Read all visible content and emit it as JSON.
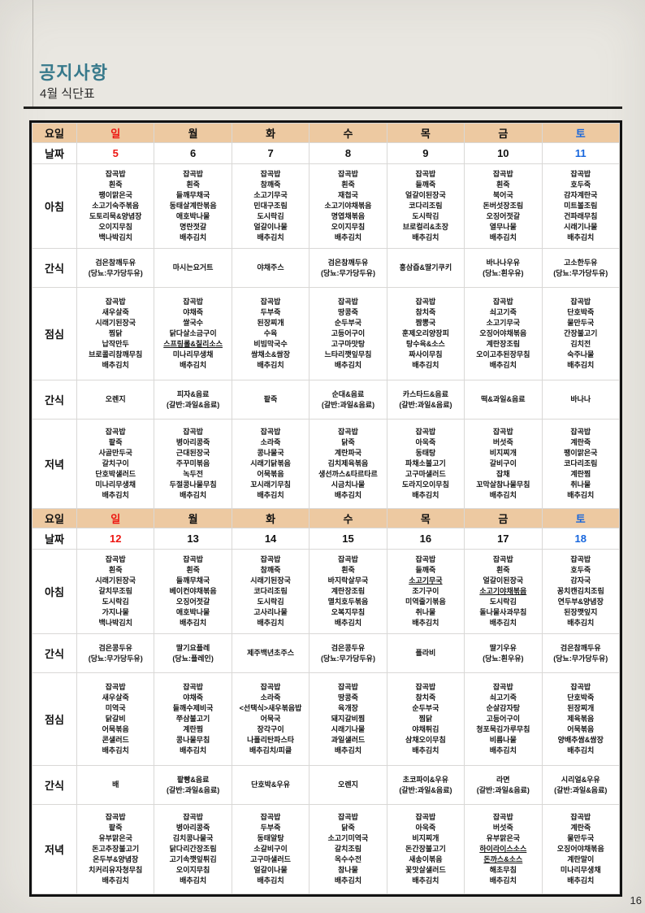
{
  "page": {
    "title": "공지사항",
    "subtitle": "4월 식단표",
    "page_number": "16"
  },
  "colors": {
    "title_accent": "#37798b",
    "header_bg": "#edc9a1",
    "sunday": "#ed1510",
    "saturday": "#1766dd",
    "weekday": "#111111"
  },
  "table": {
    "day_header_label": "요일",
    "date_label": "날짜",
    "days": [
      "일",
      "월",
      "화",
      "수",
      "목",
      "금",
      "토"
    ],
    "day_colors": [
      "#ed1510",
      "#111111",
      "#111111",
      "#111111",
      "#111111",
      "#111111",
      "#1766dd"
    ],
    "weeks": [
      {
        "dates": [
          "5",
          "6",
          "7",
          "8",
          "9",
          "10",
          "11"
        ],
        "rows": [
          {
            "label": "아침",
            "type": "breakfast",
            "cells": [
              [
                "잡곡밥",
                "흰죽",
                "팽이맑은국",
                "소고기숙주볶음",
                "도토리묵&양념장",
                "오이지무침",
                "백나박김치"
              ],
              [
                "잡곡밥",
                "흰죽",
                "들깨무채국",
                "동태살계란볶음",
                "애호박나물",
                "명란젓갈",
                "배추김치"
              ],
              [
                "잡곡밥",
                "참깨죽",
                "소고기무국",
                "민대구조림",
                "도시락김",
                "얼갈이나물",
                "배추김치"
              ],
              [
                "잡곡밥",
                "흰죽",
                "재첩국",
                "소고기야채볶음",
                "명엽채볶음",
                "오이지무침",
                "배추김치"
              ],
              [
                "잡곡밥",
                "들깨죽",
                "얼갈이된장국",
                "코다리조림",
                "도시락김",
                "브로컬리&초장",
                "배추김치"
              ],
              [
                "잡곡밥",
                "흰죽",
                "북어국",
                "돈버섯장조림",
                "오징어젓갈",
                "열무나물",
                "배추김치"
              ],
              [
                "잡곡밥",
                "호두죽",
                "감자계란국",
                "미트볼조림",
                "건파래무침",
                "시래기나물",
                "배추김치"
              ]
            ]
          },
          {
            "label": "간식",
            "type": "snack",
            "cells": [
              [
                "검은참깨두유",
                "(당뇨:무가당두유)"
              ],
              [
                "마시는요거트"
              ],
              [
                "야채주스"
              ],
              [
                "검은참깨두유",
                "(당뇨:무가당두유)"
              ],
              [
                "홍삼즙&딸기쿠키"
              ],
              [
                "바나나우유",
                "(당뇨:흰우유)"
              ],
              [
                "고소한두유",
                "(당뇨:무가당두유)"
              ]
            ]
          },
          {
            "label": "점심",
            "type": "lunch",
            "cells": [
              [
                "잡곡밥",
                "새우살죽",
                "시래기된장국",
                "찜닭",
                "납작만두",
                "브로콜리참깨무침",
                "배추김치"
              ],
              [
                "잡곡밥",
                "야채죽",
                "쌀국수",
                "닭다살소금구이",
                {
                  "text": "스프링롤&칠리소스",
                  "u": true
                },
                "미나리무생채",
                "배추김치"
              ],
              [
                "잡곡밥",
                "두부죽",
                "된장찌개",
                "수육",
                "비빔막국수",
                "쌈채소&쌈장",
                "배추김치"
              ],
              [
                "잡곡밥",
                "땅콩죽",
                "순두부국",
                "고등어구이",
                "고구마맛탕",
                "느타리깻잎무침",
                "배추김치"
              ],
              [
                "잡곡밥",
                "참치죽",
                "짬뽕국",
                "훈제오리양장피",
                "탕수육&소스",
                "짜사이무침",
                "배추김치"
              ],
              [
                "잡곡밥",
                "쇠고기죽",
                "소고기무국",
                "오징어야채볶음",
                "계란장조림",
                "오이고추된장무침",
                "배추김치"
              ],
              [
                "잡곡밥",
                "단호박죽",
                "물만두국",
                "간장불고기",
                "김치전",
                "숙주나물",
                "배추김치"
              ]
            ]
          },
          {
            "label": "간식",
            "type": "snack",
            "cells": [
              [
                "오렌지"
              ],
              [
                "피자&음료",
                "(갈반:과일&음료)"
              ],
              [
                "팥죽"
              ],
              [
                "순대&음료",
                "(갈반:과일&음료)"
              ],
              [
                "카스타드&음료",
                "(갈반:과일&음료)"
              ],
              [
                "떡&과일&음료"
              ],
              [
                "바나나"
              ]
            ]
          },
          {
            "label": "저녁",
            "type": "dinner",
            "cells": [
              [
                "잡곡밥",
                "팥죽",
                "사골만두국",
                "갈치구이",
                "단호박샐러드",
                "미나리무생채",
                "배추김치"
              ],
              [
                "잡곡밥",
                "병아리콩죽",
                "근대된장국",
                "주꾸미볶음",
                "녹두전",
                "두절콩나물무침",
                "배추김치"
              ],
              [
                "잡곡밥",
                "소라죽",
                "콩나물국",
                "시래기닭볶음",
                "어묵볶음",
                "꼬시래기무침",
                "배추김치"
              ],
              [
                "잡곡밥",
                "닭죽",
                "계란파국",
                "김치제육볶음",
                "생선까스&타르타르",
                "시금치나물",
                "배추김치"
              ],
              [
                "잡곡밥",
                "아욱죽",
                "동태탕",
                "파채소불고기",
                "고구마샐러드",
                "도라지오이무침",
                "배추김치"
              ],
              [
                "잡곡밥",
                "버섯죽",
                "비지찌개",
                "갈비구이",
                "잡채",
                "꼬막살참나물무침",
                "배추김치"
              ],
              [
                "잡곡밥",
                "계란죽",
                "팽이맑은국",
                "코다리조림",
                "계란찜",
                "취나물",
                "배추김치"
              ]
            ]
          }
        ]
      },
      {
        "dates": [
          "12",
          "13",
          "14",
          "15",
          "16",
          "17",
          "18"
        ],
        "rows": [
          {
            "label": "아침",
            "type": "breakfast",
            "cells": [
              [
                "잡곡밥",
                "흰죽",
                "시래기된장국",
                "갈치무조림",
                "도시락김",
                "가지나물",
                "백나박김치"
              ],
              [
                "잡곡밥",
                "흰죽",
                "들깨무채국",
                "베이컨야채볶음",
                "오징어젓갈",
                "애호박나물",
                "배추김치"
              ],
              [
                "잡곡밥",
                "참깨죽",
                "시래기된장국",
                "코다리조림",
                "도시락김",
                "고사리나물",
                "배추김치"
              ],
              [
                "잡곡밥",
                "흰죽",
                "바지락살무국",
                "계란장조림",
                "멸치호두볶음",
                "오복지무침",
                "배추김치"
              ],
              [
                "잡곡밥",
                "들깨죽",
                {
                  "text": "소고기무국",
                  "u": true
                },
                "조기구이",
                "미역줄기볶음",
                "취나물",
                "배추김치"
              ],
              [
                "잡곡밥",
                "흰죽",
                "얼갈이된장국",
                {
                  "text": "소고기야채볶음",
                  "u": true
                },
                "도시락김",
                "돌나물사과무침",
                "배추김치"
              ],
              [
                "잡곡밥",
                "호두죽",
                "감자국",
                "꽁치캔김치조림",
                "연두부&양념장",
                "된장깻잎지",
                "배추김치"
              ]
            ]
          },
          {
            "label": "간식",
            "type": "snack",
            "cells": [
              [
                "검은콩두유",
                "(당뇨:무가당두유)"
              ],
              [
                "딸기요플레",
                "(당뇨:플레인)"
              ],
              [
                "제주백년초주스"
              ],
              [
                "검은콩두유",
                "(당뇨:무가당두유)"
              ],
              [
                "폴라비"
              ],
              [
                "딸기우유",
                "(당뇨:흰우유)"
              ],
              [
                "검은참깨두유",
                "(당뇨:무가당두유)"
              ]
            ]
          },
          {
            "label": "점심",
            "type": "lunch",
            "cells": [
              [
                "잡곡밥",
                "새우살죽",
                "미역국",
                "닭갈비",
                "어묵볶음",
                "콘샐러드",
                "배추김치"
              ],
              [
                "잡곡밥",
                "야채죽",
                "들깨수제비국",
                "쭈삼불고기",
                "계란찜",
                "콩나물무침",
                "배추김치"
              ],
              [
                "잡곡밥",
                "소라죽",
                "<선택식>새우볶음밥",
                "어묵국",
                "장각구이",
                "나폴리탄파스타",
                "배추김치/피클"
              ],
              [
                "잡곡밥",
                "땅콩죽",
                "육개장",
                "돼지갈비찜",
                "시래기나물",
                "과일샐러드",
                "배추김치"
              ],
              [
                "잡곡밥",
                "참치죽",
                "순두부국",
                "찜닭",
                "야채튀김",
                "삼채오이무침",
                "배추김치"
              ],
              [
                "잡곡밥",
                "쇠고기죽",
                "순살감자탕",
                "고등어구이",
                "청포묵김가루무침",
                "비름나물",
                "배추김치"
              ],
              [
                "잡곡밥",
                "단호박죽",
                "된장찌개",
                "제육볶음",
                "어묵볶음",
                "양배추쌈&쌈장",
                "배추김치"
              ]
            ]
          },
          {
            "label": "간식",
            "type": "snack",
            "cells": [
              [
                "배"
              ],
              [
                "팥빵&음료",
                "(갈반:과일&음료)"
              ],
              [
                "단호박&우유"
              ],
              [
                "오렌지"
              ],
              [
                "초코파이&우유",
                "(갈반:과일&음료)"
              ],
              [
                "라면",
                "(갈반:과일&음료)"
              ],
              [
                "시리얼&우유",
                "(갈반:과일&음료)"
              ]
            ]
          },
          {
            "label": "저녁",
            "type": "dinner",
            "cells": [
              [
                "잡곡밥",
                "팥죽",
                "유부맑은국",
                "돈고추장불고기",
                "온두부&양념장",
                "치커리유자청무침",
                "배추김치"
              ],
              [
                "잡곡밥",
                "병아리콩죽",
                "김치콩나물국",
                "닭다리간장조림",
                "고기속깻잎튀김",
                "오이지무침",
                "배추김치"
              ],
              [
                "잡곡밥",
                "두부죽",
                "동태알탕",
                "소갈비구이",
                "고구마샐러드",
                "얼갈이나물",
                "배추김치"
              ],
              [
                "잡곡밥",
                "닭죽",
                "소고기미역국",
                "갈치조림",
                "옥수수전",
                "참나물",
                "배추김치"
              ],
              [
                "잡곡밥",
                "아욱죽",
                "비지찌개",
                "돈간장불고기",
                "새송이볶음",
                "꽃맛살샐러드",
                "배추김치"
              ],
              [
                "잡곡밥",
                "버섯죽",
                "유부맑은국",
                {
                  "text": "하이라이스소스",
                  "u": true
                },
                {
                  "text": "돈까스&소스",
                  "u": true
                },
                "해초무침",
                "배추김치"
              ],
              [
                "잡곡밥",
                "계란죽",
                "물만두국",
                "오징어야채볶음",
                "계란말이",
                "미나리무생채",
                "배추김치"
              ]
            ]
          }
        ]
      }
    ]
  }
}
